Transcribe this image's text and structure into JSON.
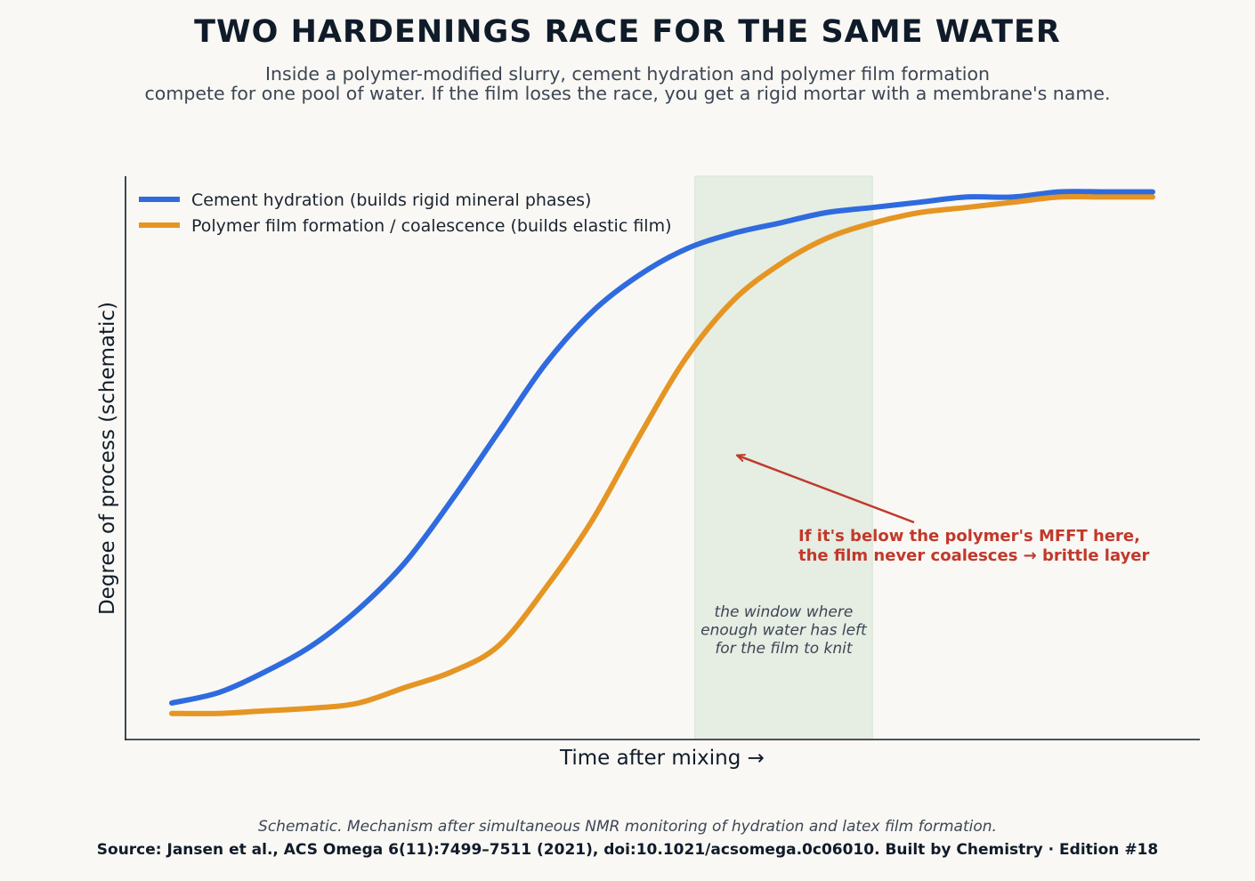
{
  "header": {
    "title": "TWO HARDENINGS RACE FOR THE SAME WATER",
    "subtitle_line1": "Inside a polymer-modified slurry, cement hydration and polymer film formation",
    "subtitle_line2": "compete for one pool of water. If the film loses the race, you get a rigid mortar with a membrane's name."
  },
  "chart_data": {
    "type": "line",
    "xlabel": "Time after mixing  →",
    "ylabel": "Degree of process  (schematic)",
    "x_ticks": "none",
    "y_ticks": "none",
    "xlim": [
      0,
      1.1
    ],
    "ylim": [
      0,
      1.08
    ],
    "grid": false,
    "legend_position": "top-left",
    "series": [
      {
        "name": "Cement hydration (builds rigid mineral phases)",
        "color": "#2f6bde",
        "x": [
          0.05,
          0.1,
          0.15,
          0.2,
          0.25,
          0.3,
          0.35,
          0.4,
          0.45,
          0.5,
          0.55,
          0.6,
          0.65,
          0.7,
          0.75,
          0.8,
          0.85,
          0.9,
          0.95,
          1.0,
          1.05,
          1.1
        ],
        "y": [
          0.07,
          0.09,
          0.13,
          0.18,
          0.25,
          0.34,
          0.46,
          0.59,
          0.72,
          0.82,
          0.89,
          0.94,
          0.97,
          0.99,
          1.01,
          1.02,
          1.03,
          1.04,
          1.04,
          1.05,
          1.05,
          1.05
        ]
      },
      {
        "name": "Polymer film formation / coalescence (builds elastic film)",
        "color": "#e59523",
        "x": [
          0.05,
          0.1,
          0.15,
          0.2,
          0.25,
          0.3,
          0.35,
          0.4,
          0.45,
          0.5,
          0.55,
          0.6,
          0.65,
          0.7,
          0.75,
          0.8,
          0.85,
          0.9,
          0.95,
          1.0,
          1.05,
          1.1
        ],
        "y": [
          0.05,
          0.05,
          0.055,
          0.06,
          0.07,
          0.1,
          0.13,
          0.18,
          0.29,
          0.42,
          0.58,
          0.73,
          0.84,
          0.91,
          0.96,
          0.99,
          1.01,
          1.02,
          1.03,
          1.04,
          1.04,
          1.04
        ]
      }
    ],
    "shaded_window": {
      "x_range": [
        0.61,
        0.8
      ],
      "color": "#dfe8dc",
      "label_lines": [
        "the window where",
        "enough water has left",
        "for the film to knit"
      ]
    },
    "annotation": {
      "lines": [
        "If it's below the polymer's MFFT here,",
        "the film never coalesces → brittle layer"
      ],
      "color": "#c0392b",
      "points_to": {
        "series": 1,
        "x": 0.655,
        "y": 0.545
      }
    }
  },
  "footer": {
    "note": "Schematic. Mechanism after simultaneous NMR monitoring of hydration and latex film formation.",
    "source": "Source: Jansen et al., ACS Omega 6(11):7499–7511 (2021), doi:10.1021/acsomega.0c06010.   Built by Chemistry · Edition #18"
  }
}
